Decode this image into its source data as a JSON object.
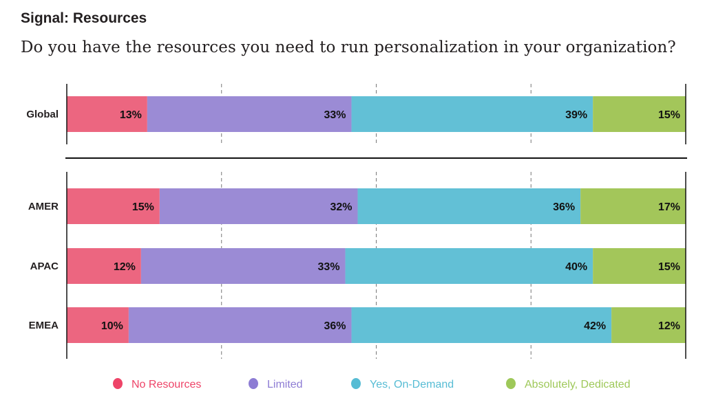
{
  "chart_data": {
    "type": "bar",
    "orientation": "horizontal",
    "stacked": true,
    "title": "Signal: Resources",
    "subtitle": "Do you have the resources you need to run personalization in your organization?",
    "categories": [
      "Global",
      "AMER",
      "APAC",
      "EMEA"
    ],
    "series": [
      {
        "name": "No Resources",
        "color": "#ec6680",
        "values": [
          13,
          15,
          12,
          10
        ]
      },
      {
        "name": "Limited",
        "color": "#9b8bd5",
        "values": [
          33,
          32,
          33,
          36
        ]
      },
      {
        "name": "Yes, On-Demand",
        "color": "#62c0d6",
        "values": [
          39,
          36,
          40,
          42
        ]
      },
      {
        "name": "Absolutely, Dedicated",
        "color": "#a3c65a",
        "values": [
          15,
          17,
          15,
          12
        ]
      }
    ],
    "data_label_suffix": "%",
    "xlim": [
      0,
      100
    ],
    "grid": "dashed vertical at 25, 50, 75",
    "legend": "bottom",
    "legend_text_colors": [
      "#ee4468",
      "#8d7cd4",
      "#56bcd4",
      "#9ec859"
    ]
  }
}
